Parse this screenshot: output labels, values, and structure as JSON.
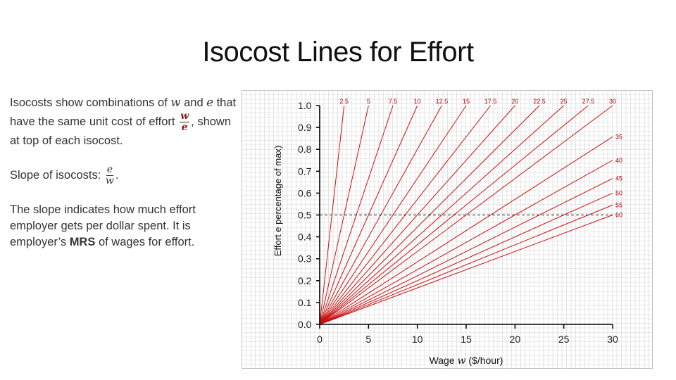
{
  "slide": {
    "title": "Isocost Lines for Effort"
  },
  "text_panel": {
    "p1_a": "Isocosts show combinations of",
    "var_w": "w",
    "p1_and": "and",
    "var_e": "e",
    "p1_b": "that have the same unit cost of effort",
    "frac_num": "w",
    "frac_den": "e",
    "p1_c": ", shown at top of each isocost.",
    "p2_a": "Slope of isocosts:",
    "frac2_num": "e",
    "frac2_den": "w",
    "p2_end": ".",
    "p3_a": "The slope indicates how much effort employer gets per dollar spent. It is employer’s",
    "p3_bold": "MRS",
    "p3_b": "of wages for effort."
  },
  "colors": {
    "isocost_line": "#cc1111",
    "label_red": "#aa0000",
    "grid": "#d4d4d4",
    "axis": "#000000",
    "text": "#333333"
  },
  "chart_data": {
    "type": "line",
    "xlabel_prefix": "Wage",
    "xlabel_var": "w",
    "xlabel_suffix": "($/hour)",
    "ylabel": "Effort e percentage of max)",
    "xlim": [
      0,
      30
    ],
    "ylim": [
      0,
      1
    ],
    "x_ticks": [
      "0",
      "5",
      "10",
      "15",
      "20",
      "25",
      "30"
    ],
    "y_ticks": [
      "0.0",
      "0.1",
      "0.2",
      "0.3",
      "0.4",
      "0.5",
      "0.6",
      "0.7",
      "0.8",
      "0.9",
      "1.0"
    ],
    "grid": true,
    "isocost_values": [
      2.5,
      5,
      7.5,
      10,
      12.5,
      15,
      17.5,
      20,
      22.5,
      25,
      27.5,
      30,
      35,
      40,
      45,
      50,
      55,
      60
    ],
    "isocost_labels": [
      "2.5",
      "5",
      "7.5",
      "10",
      "12.5",
      "15",
      "17.5",
      "20",
      "22.5",
      "25",
      "27.5",
      "30",
      "35",
      "40",
      "45",
      "50",
      "55",
      "60"
    ],
    "reference_line": {
      "y": 0.5,
      "style": "dashed"
    }
  }
}
